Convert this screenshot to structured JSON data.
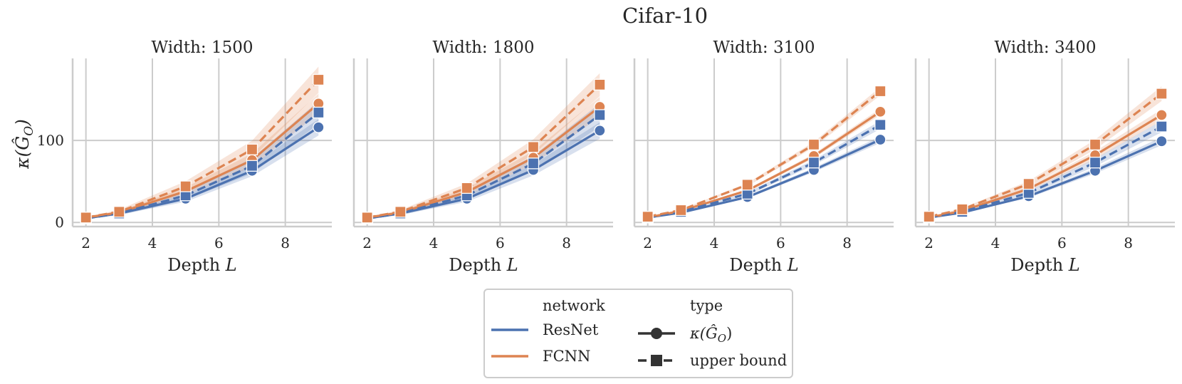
{
  "chart_data": {
    "type": "line",
    "title": "Cifar-10",
    "ylabel": "κ(Ĝ_O)",
    "y_ticks": [
      0,
      100
    ],
    "x_ticks": [
      2,
      4,
      6,
      8
    ],
    "xlim": [
      1.6,
      9.4
    ],
    "ylim": [
      -5,
      200
    ],
    "x": [
      2,
      3,
      5,
      7,
      9
    ],
    "subplots": [
      {
        "title": "Width: 1500",
        "xlabel": "Depth L",
        "series": [
          {
            "network": "ResNet",
            "type": "κ",
            "values": [
              5,
              11,
              29,
              63,
              116
            ],
            "band": 10
          },
          {
            "network": "FCNN",
            "type": "κ",
            "values": [
              6,
              12,
              38,
              76,
              145
            ],
            "band": 12
          },
          {
            "network": "ResNet",
            "type": "upper bound",
            "values": [
              5,
              11,
              33,
              69,
              134
            ],
            "band": 14
          },
          {
            "network": "FCNN",
            "type": "upper bound",
            "values": [
              6,
              13,
              44,
              89,
              174
            ],
            "band": 16
          }
        ]
      },
      {
        "title": "Width: 1800",
        "xlabel": "Depth L",
        "series": [
          {
            "network": "ResNet",
            "type": "κ",
            "values": [
              5,
              11,
              29,
              64,
              112
            ],
            "band": 10
          },
          {
            "network": "FCNN",
            "type": "κ",
            "values": [
              6,
              12,
              37,
              79,
              141
            ],
            "band": 12
          },
          {
            "network": "ResNet",
            "type": "upper bound",
            "values": [
              5,
              11,
              33,
              72,
              131
            ],
            "band": 14
          },
          {
            "network": "FCNN",
            "type": "upper bound",
            "values": [
              6,
              13,
              42,
              92,
              168
            ],
            "band": 14
          }
        ]
      },
      {
        "title": "Width: 3100",
        "xlabel": "Depth L",
        "series": [
          {
            "network": "ResNet",
            "type": "κ",
            "values": [
              6,
              12,
              31,
              64,
              101
            ],
            "band": 4
          },
          {
            "network": "FCNN",
            "type": "κ",
            "values": [
              6,
              14,
              39,
              81,
              135
            ],
            "band": 4
          },
          {
            "network": "ResNet",
            "type": "upper bound",
            "values": [
              6,
              13,
              35,
              73,
              119
            ],
            "band": 5
          },
          {
            "network": "FCNN",
            "type": "upper bound",
            "values": [
              7,
              15,
              46,
              95,
              160
            ],
            "band": 5
          }
        ]
      },
      {
        "title": "Width: 3400",
        "xlabel": "Depth L",
        "series": [
          {
            "network": "ResNet",
            "type": "κ",
            "values": [
              6,
              12,
              32,
              63,
              99
            ],
            "band": 5
          },
          {
            "network": "FCNN",
            "type": "κ",
            "values": [
              6,
              14,
              41,
              82,
              131
            ],
            "band": 7
          },
          {
            "network": "ResNet",
            "type": "upper bound",
            "values": [
              6,
              13,
              36,
              73,
              117
            ],
            "band": 7
          },
          {
            "network": "FCNN",
            "type": "upper bound",
            "values": [
              7,
              16,
              47,
              95,
              157
            ],
            "band": 9
          }
        ]
      }
    ],
    "legend": {
      "network_title": "network",
      "type_title": "type",
      "networks": [
        {
          "label": "ResNet",
          "color": "#4c72b0"
        },
        {
          "label": "FCNN",
          "color": "#dd8452"
        }
      ],
      "types": [
        {
          "label": "κ",
          "marker": "circle",
          "dash": "solid"
        },
        {
          "label": "upper bound",
          "marker": "square",
          "dash": "dashed"
        }
      ]
    },
    "colors": {
      "ResNet": "#4c72b0",
      "FCNN": "#dd8452",
      "grid": "#cccccc"
    }
  }
}
